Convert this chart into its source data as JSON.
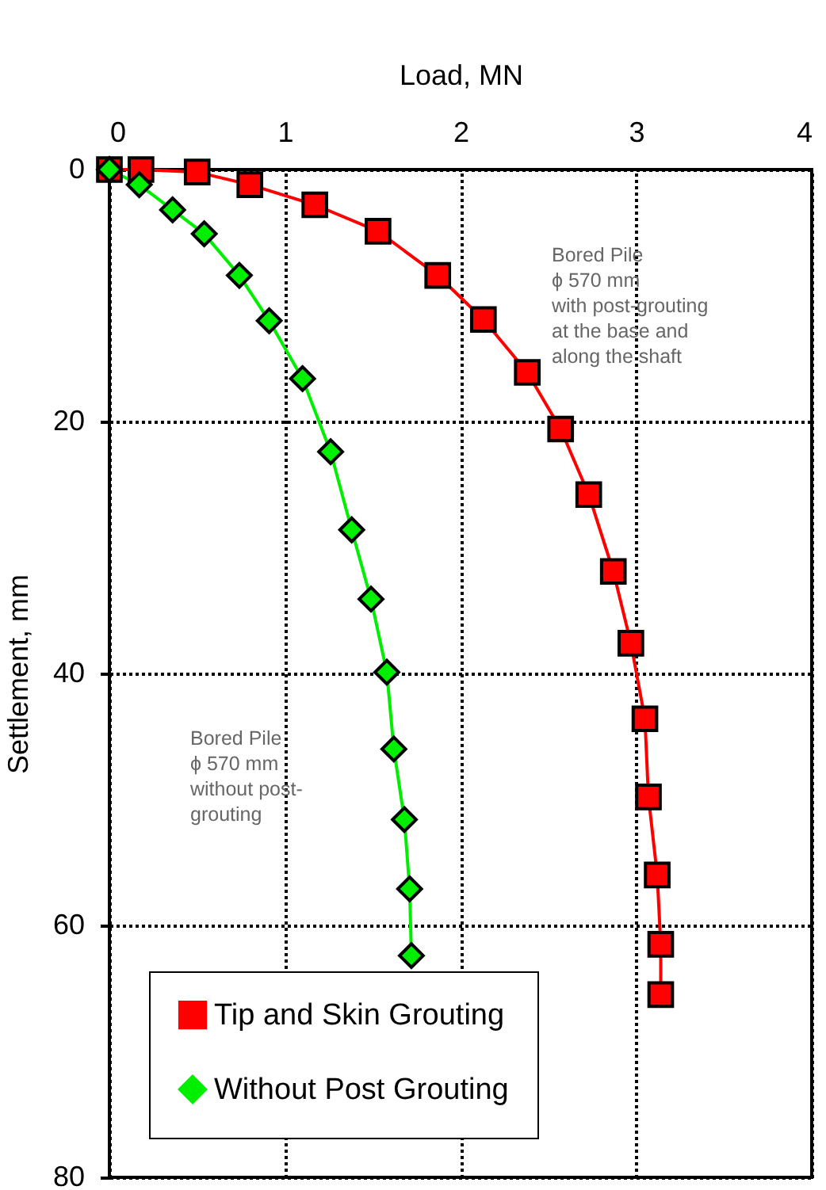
{
  "chart_data": {
    "type": "line",
    "xlabel": "Load, MN",
    "ylabel": "Settlement, mm",
    "xlim": [
      0,
      4
    ],
    "xticks": [
      0,
      1,
      2,
      3,
      4
    ],
    "ylim": [
      80,
      0
    ],
    "yticks": [
      0,
      20,
      40,
      60,
      80
    ],
    "grid": true,
    "legend": "bottom left",
    "line_style": "solid",
    "annotations": [
      "Bored Pile\nϕ 570 mm\nwith post-grouting\n   at the base and\n      along the shaft",
      "Bored Pile\nϕ 570 mm\nwithout post-\ngrouting"
    ],
    "series": [
      {
        "name": "Tip and Skin Grouting",
        "color": "#ff0000",
        "marker": "square",
        "x": [
          0,
          0.18,
          0.5,
          0.8,
          1.17,
          1.53,
          1.87,
          2.13,
          2.38,
          2.57,
          2.73,
          2.87,
          2.97,
          3.05,
          3.07,
          3.12,
          3.14,
          3.14
        ],
        "values": [
          0,
          0,
          0.2,
          1.2,
          2.8,
          4.9,
          8.4,
          11.9,
          16.1,
          20.6,
          25.8,
          31.9,
          37.6,
          43.6,
          49.8,
          56,
          61.5,
          65.5
        ]
      },
      {
        "name": "Without Post Grouting",
        "color": "#00ee00",
        "marker": "diamond",
        "x": [
          0,
          0.17,
          0.36,
          0.54,
          0.74,
          0.91,
          1.1,
          1.26,
          1.38,
          1.49,
          1.58,
          1.62,
          1.68,
          1.71,
          1.72
        ],
        "values": [
          0,
          1.2,
          3.2,
          5.1,
          8.4,
          12,
          16.6,
          22.4,
          28.6,
          34.1,
          39.9,
          46,
          51.6,
          57.1,
          62.4
        ]
      }
    ]
  }
}
